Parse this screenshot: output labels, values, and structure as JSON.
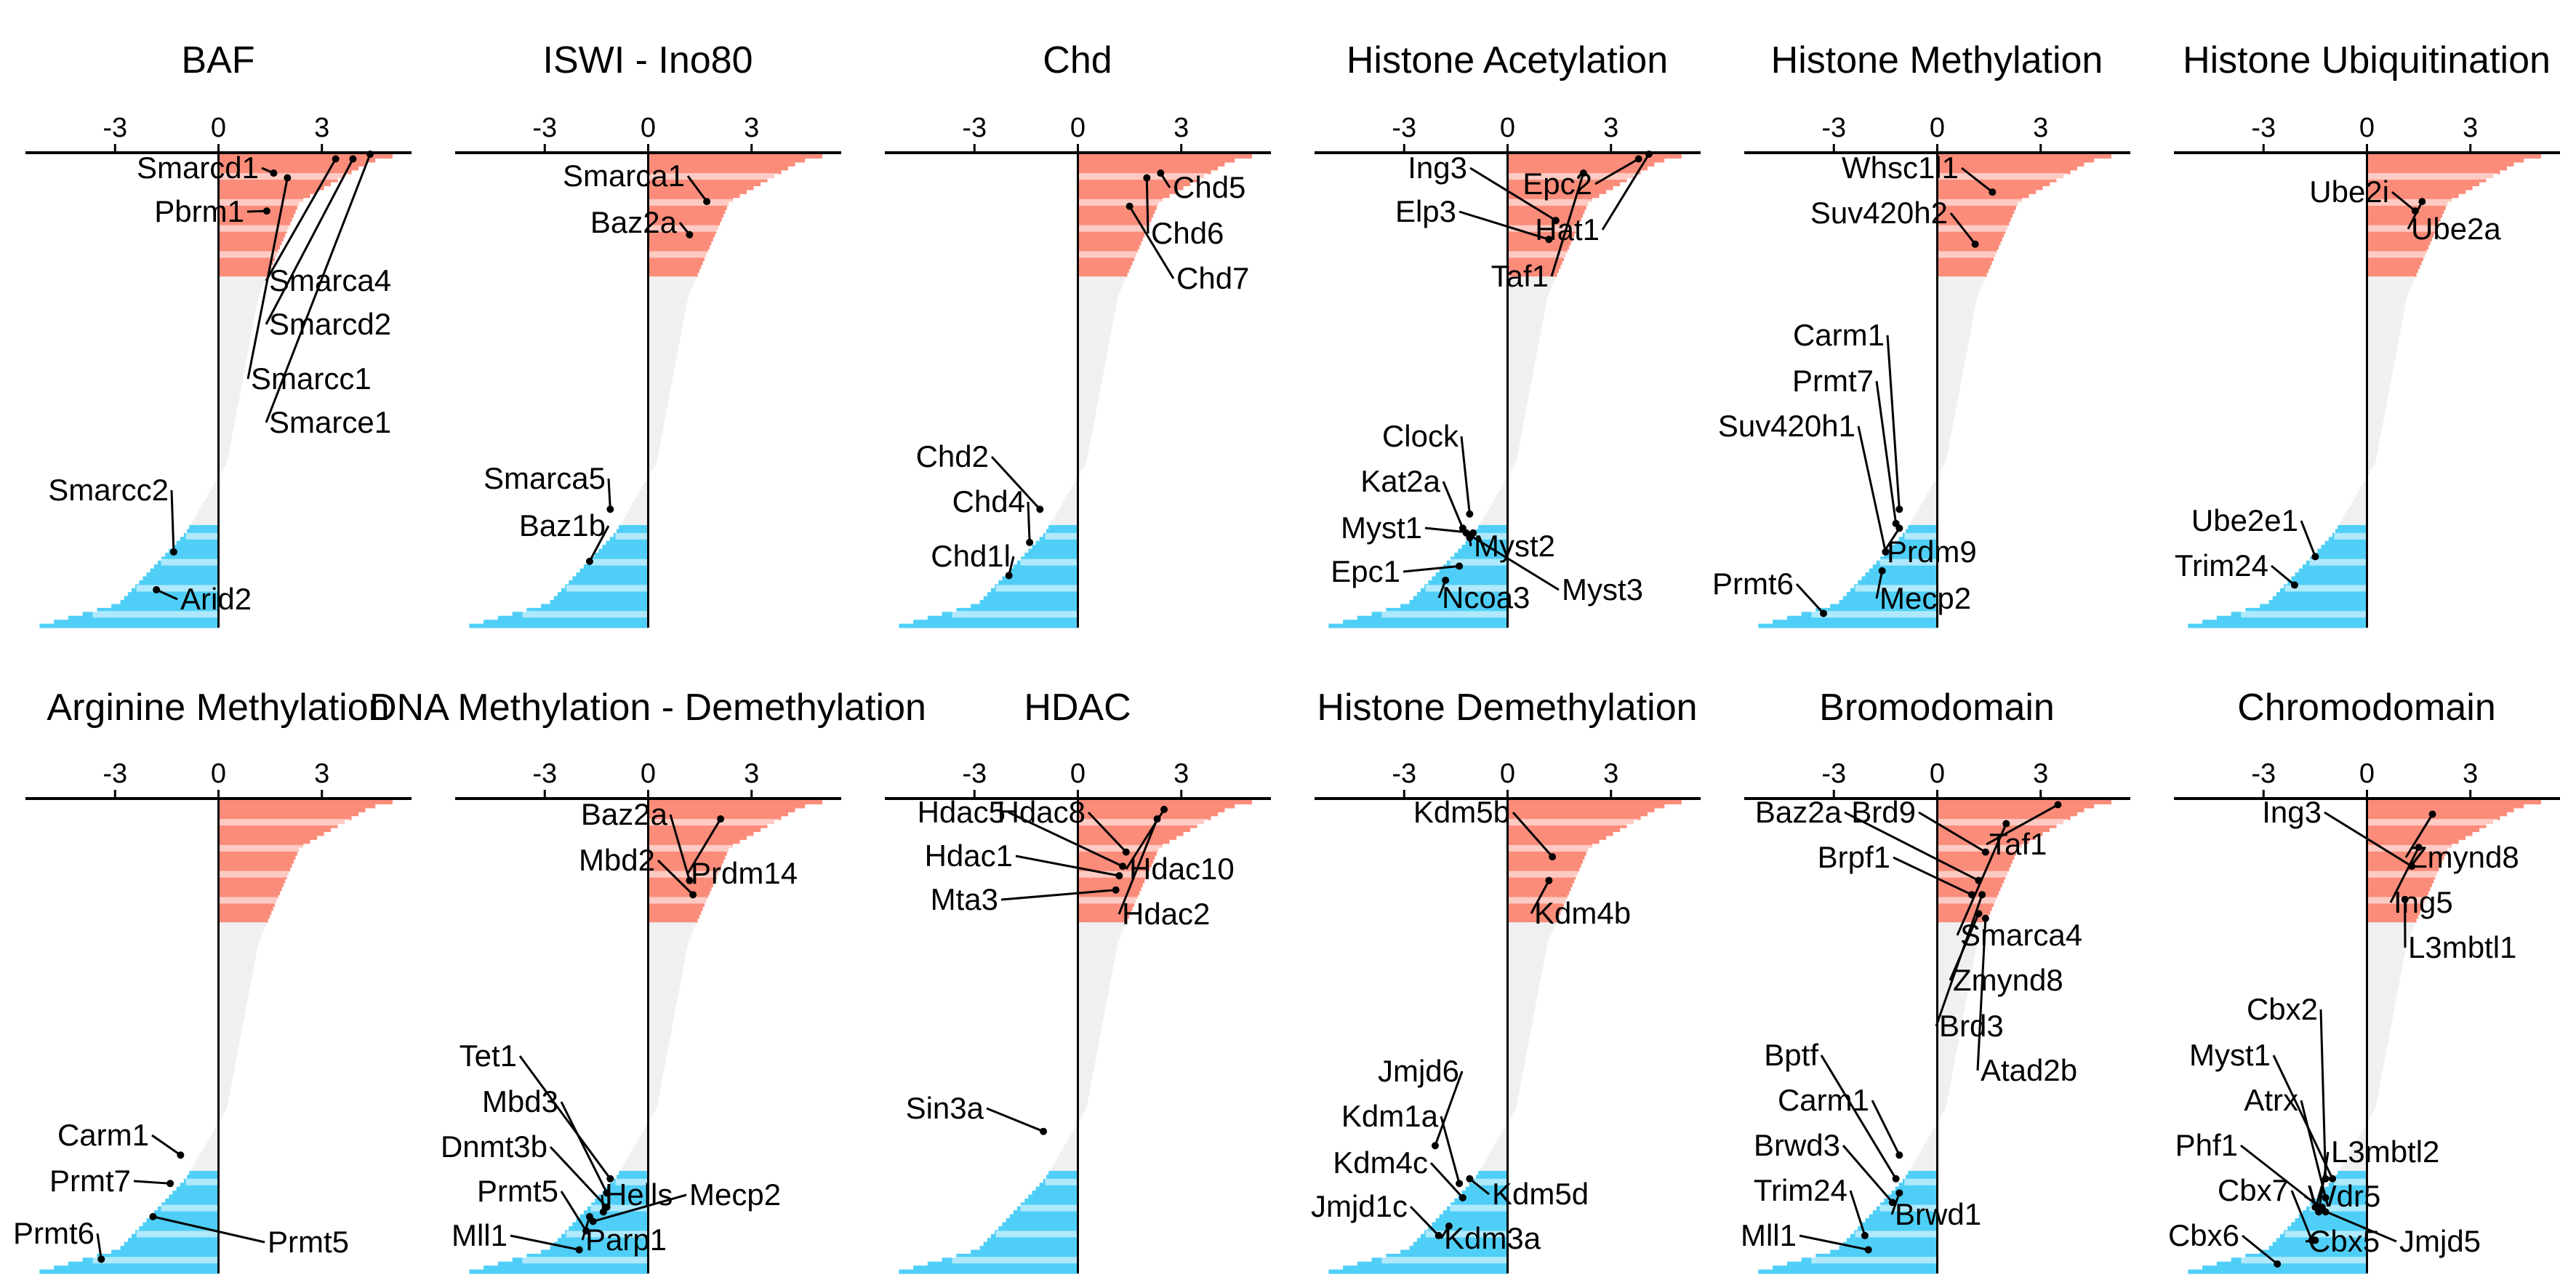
{
  "colors": {
    "positive": "#fb8c7a",
    "negative": "#4fcff7",
    "neutral": "#f0f0f0",
    "stripe": "#ffffff",
    "axis": "#000000"
  },
  "chart_data": [
    {
      "type": "bar",
      "title": "BAF",
      "xlabel": "",
      "ylabel": "",
      "xlim": [
        -5.6,
        5.6
      ],
      "xticks": [
        -3,
        0,
        3
      ],
      "xtick_labels": [
        "-3",
        "0",
        "3"
      ],
      "grid": false,
      "orientation": "horizontal, genes ranked by score from top to bottom",
      "labels": [
        {
          "gene": "Smarcd1",
          "score": 1.6,
          "rank": 0.04
        },
        {
          "gene": "Pbrm1",
          "score": 1.4,
          "rank": 0.12
        },
        {
          "gene": "Smarca4",
          "score": 3.4,
          "rank": 0.01
        },
        {
          "gene": "Smarcd2",
          "score": 3.9,
          "rank": 0.01
        },
        {
          "gene": "Smarcc1",
          "score": 2.0,
          "rank": 0.05
        },
        {
          "gene": "Smarce1",
          "score": 4.4,
          "rank": 0.0
        },
        {
          "gene": "Smarcc2",
          "score": -1.3,
          "rank": 0.84
        },
        {
          "gene": "Arid2",
          "score": -1.8,
          "rank": 0.92
        }
      ]
    },
    {
      "type": "bar",
      "title": "ISWI - Ino80",
      "xlim": [
        -5.6,
        5.6
      ],
      "xticks": [
        -3,
        0,
        3
      ],
      "xtick_labels": [
        "-3",
        "0",
        "3"
      ],
      "labels": [
        {
          "gene": "Smarca1",
          "score": 1.7,
          "rank": 0.1
        },
        {
          "gene": "Baz2a",
          "score": 1.2,
          "rank": 0.17
        },
        {
          "gene": "Smarca5",
          "score": -1.1,
          "rank": 0.75
        },
        {
          "gene": "Baz1b",
          "score": -1.7,
          "rank": 0.86
        }
      ]
    },
    {
      "type": "bar",
      "title": "Chd",
      "xlim": [
        -5.6,
        5.6
      ],
      "xticks": [
        -3,
        0,
        3
      ],
      "xtick_labels": [
        "-3",
        "0",
        "3"
      ],
      "labels": [
        {
          "gene": "Chd5",
          "score": 2.4,
          "rank": 0.04
        },
        {
          "gene": "Chd6",
          "score": 2.0,
          "rank": 0.05
        },
        {
          "gene": "Chd7",
          "score": 1.5,
          "rank": 0.11
        },
        {
          "gene": "Chd2",
          "score": -1.1,
          "rank": 0.75
        },
        {
          "gene": "Chd4",
          "score": -1.4,
          "rank": 0.82
        },
        {
          "gene": "Chd1l",
          "score": -2.0,
          "rank": 0.89
        }
      ]
    },
    {
      "type": "bar",
      "title": "Histone Acetylation",
      "xlim": [
        -5.6,
        5.6
      ],
      "xticks": [
        -3,
        0,
        3
      ],
      "xtick_labels": [
        "-3",
        "0",
        "3"
      ],
      "labels": [
        {
          "gene": "Ing3",
          "score": 1.4,
          "rank": 0.14
        },
        {
          "gene": "Elp3",
          "score": 1.2,
          "rank": 0.18
        },
        {
          "gene": "Taf1",
          "score": 2.2,
          "rank": 0.04
        },
        {
          "gene": "Epc2",
          "score": 3.8,
          "rank": 0.01
        },
        {
          "gene": "Hat1",
          "score": 4.1,
          "rank": 0.0
        },
        {
          "gene": "Clock",
          "score": -1.1,
          "rank": 0.76
        },
        {
          "gene": "Kat2a",
          "score": -1.3,
          "rank": 0.79
        },
        {
          "gene": "Myst1",
          "score": -1.0,
          "rank": 0.8
        },
        {
          "gene": "Myst2",
          "score": -1.1,
          "rank": 0.81
        },
        {
          "gene": "Myst3",
          "score": -1.2,
          "rank": 0.8
        },
        {
          "gene": "Epc1",
          "score": -1.4,
          "rank": 0.87
        },
        {
          "gene": "Ncoa3",
          "score": -1.8,
          "rank": 0.9
        }
      ]
    },
    {
      "type": "bar",
      "title": "Histone Methylation",
      "xlim": [
        -5.6,
        5.6
      ],
      "xticks": [
        -3,
        0,
        3
      ],
      "xtick_labels": [
        "-3",
        "0",
        "3"
      ],
      "labels": [
        {
          "gene": "Whsc1l1",
          "score": 1.6,
          "rank": 0.08
        },
        {
          "gene": "Suv420h2",
          "score": 1.1,
          "rank": 0.19
        },
        {
          "gene": "Carm1",
          "score": -1.1,
          "rank": 0.75
        },
        {
          "gene": "Prmt7",
          "score": -1.2,
          "rank": 0.78
        },
        {
          "gene": "Suv420h1",
          "score": -1.5,
          "rank": 0.84
        },
        {
          "gene": "Prdm9",
          "score": -1.1,
          "rank": 0.79
        },
        {
          "gene": "Prmt6",
          "score": -3.3,
          "rank": 0.97
        },
        {
          "gene": "Mecp2",
          "score": -1.6,
          "rank": 0.88
        }
      ]
    },
    {
      "type": "bar",
      "title": "Histone Ubiquitination",
      "xlim": [
        -5.6,
        5.6
      ],
      "xticks": [
        -3,
        0,
        3
      ],
      "xtick_labels": [
        "-3",
        "0",
        "3"
      ],
      "labels": [
        {
          "gene": "Ube2i",
          "score": 1.4,
          "rank": 0.12
        },
        {
          "gene": "Ube2a",
          "score": 1.6,
          "rank": 0.1
        },
        {
          "gene": "Ube2e1",
          "score": -1.5,
          "rank": 0.85
        },
        {
          "gene": "Trim24",
          "score": -2.1,
          "rank": 0.91
        }
      ]
    },
    {
      "type": "bar",
      "title": "Arginine Methylation",
      "xlim": [
        -5.6,
        5.6
      ],
      "xticks": [
        -3,
        0,
        3
      ],
      "xtick_labels": [
        "-3",
        "0",
        "3"
      ],
      "labels": [
        {
          "gene": "Carm1",
          "score": -1.1,
          "rank": 0.75
        },
        {
          "gene": "Prmt7",
          "score": -1.4,
          "rank": 0.81
        },
        {
          "gene": "Prmt6",
          "score": -3.4,
          "rank": 0.97
        },
        {
          "gene": "Prmt5",
          "score": -1.9,
          "rank": 0.88
        }
      ]
    },
    {
      "type": "bar",
      "title": "DNA Methylation - Demethylation",
      "xlim": [
        -5.6,
        5.6
      ],
      "xticks": [
        -3,
        0,
        3
      ],
      "xtick_labels": [
        "-3",
        "0",
        "3"
      ],
      "labels": [
        {
          "gene": "Baz2a",
          "score": 1.2,
          "rank": 0.17
        },
        {
          "gene": "Mbd2",
          "score": 1.3,
          "rank": 0.2
        },
        {
          "gene": "Prdm14",
          "score": 2.1,
          "rank": 0.04
        },
        {
          "gene": "Tet1",
          "score": -1.1,
          "rank": 0.8
        },
        {
          "gene": "Mbd3",
          "score": -1.2,
          "rank": 0.83
        },
        {
          "gene": "Dnmt3b",
          "score": -1.2,
          "rank": 0.86
        },
        {
          "gene": "Hells",
          "score": -1.3,
          "rank": 0.87
        },
        {
          "gene": "Mecp2",
          "score": -1.6,
          "rank": 0.89
        },
        {
          "gene": "Prmt5",
          "score": -1.8,
          "rank": 0.91
        },
        {
          "gene": "Parp1",
          "score": -1.7,
          "rank": 0.88
        },
        {
          "gene": "Mll1",
          "score": -2.0,
          "rank": 0.95
        }
      ]
    },
    {
      "type": "bar",
      "title": "HDAC",
      "xlim": [
        -5.6,
        5.6
      ],
      "xticks": [
        -3,
        0,
        3
      ],
      "xtick_labels": [
        "-3",
        "0",
        "3"
      ],
      "labels": [
        {
          "gene": "Hdac5",
          "score": 1.3,
          "rank": 0.14
        },
        {
          "gene": "Hdac8",
          "score": 1.4,
          "rank": 0.11
        },
        {
          "gene": "Hdac1",
          "score": 1.2,
          "rank": 0.16
        },
        {
          "gene": "Hdac10",
          "score": 2.5,
          "rank": 0.02
        },
        {
          "gene": "Mta3",
          "score": 1.1,
          "rank": 0.19
        },
        {
          "gene": "Hdac2",
          "score": 2.3,
          "rank": 0.04
        },
        {
          "gene": "Sin3a",
          "score": -1.0,
          "rank": 0.7
        }
      ]
    },
    {
      "type": "bar",
      "title": "Histone Demethylation",
      "xlim": [
        -5.6,
        5.6
      ],
      "xticks": [
        -3,
        0,
        3
      ],
      "xtick_labels": [
        "-3",
        "0",
        "3"
      ],
      "labels": [
        {
          "gene": "Kdm5b",
          "score": 1.3,
          "rank": 0.12
        },
        {
          "gene": "Kdm4b",
          "score": 1.2,
          "rank": 0.17
        },
        {
          "gene": "Jmjd6",
          "score": -2.1,
          "rank": 0.73
        },
        {
          "gene": "Kdm1a",
          "score": -1.4,
          "rank": 0.81
        },
        {
          "gene": "Kdm4c",
          "score": -1.3,
          "rank": 0.84
        },
        {
          "gene": "Kdm5d",
          "score": -1.1,
          "rank": 0.8
        },
        {
          "gene": "Jmjd1c",
          "score": -2.0,
          "rank": 0.92
        },
        {
          "gene": "Kdm3a",
          "score": -1.7,
          "rank": 0.9
        }
      ]
    },
    {
      "type": "bar",
      "title": "Bromodomain",
      "xlim": [
        -5.6,
        5.6
      ],
      "xticks": [
        -3,
        0,
        3
      ],
      "xtick_labels": [
        "-3",
        "0",
        "3"
      ],
      "labels": [
        {
          "gene": "Baz2a",
          "score": 1.2,
          "rank": 0.17
        },
        {
          "gene": "Brd9",
          "score": 1.4,
          "rank": 0.11
        },
        {
          "gene": "Brpf1",
          "score": 1.0,
          "rank": 0.2
        },
        {
          "gene": "Taf1",
          "score": 3.5,
          "rank": 0.01
        },
        {
          "gene": "Smarca4",
          "score": 2.0,
          "rank": 0.05
        },
        {
          "gene": "Zmynd8",
          "score": 1.2,
          "rank": 0.24
        },
        {
          "gene": "Brd3",
          "score": 1.3,
          "rank": 0.2
        },
        {
          "gene": "Atad2b",
          "score": 1.4,
          "rank": 0.25
        },
        {
          "gene": "Bptf",
          "score": -1.2,
          "rank": 0.8
        },
        {
          "gene": "Carm1",
          "score": -1.1,
          "rank": 0.75
        },
        {
          "gene": "Brwd3",
          "score": -1.3,
          "rank": 0.85
        },
        {
          "gene": "Brwd1",
          "score": -1.1,
          "rank": 0.83
        },
        {
          "gene": "Trim24",
          "score": -2.1,
          "rank": 0.92
        },
        {
          "gene": "Mll1",
          "score": -2.0,
          "rank": 0.95
        }
      ]
    },
    {
      "type": "bar",
      "title": "Chromodomain",
      "xlim": [
        -5.6,
        5.6
      ],
      "xticks": [
        -3,
        0,
        3
      ],
      "xtick_labels": [
        "-3",
        "0",
        "3"
      ],
      "labels": [
        {
          "gene": "Ing3",
          "score": 1.3,
          "rank": 0.14
        },
        {
          "gene": "Zmynd8",
          "score": 1.9,
          "rank": 0.03
        },
        {
          "gene": "Ing5",
          "score": 1.5,
          "rank": 0.1
        },
        {
          "gene": "L3mbtl1",
          "score": 1.1,
          "rank": 0.21
        },
        {
          "gene": "Cbx2",
          "score": -1.2,
          "rank": 0.8
        },
        {
          "gene": "Myst1",
          "score": -1.0,
          "rank": 0.8
        },
        {
          "gene": "Atrx",
          "score": -1.2,
          "rank": 0.84
        },
        {
          "gene": "L3mbtl2",
          "score": -1.4,
          "rank": 0.87
        },
        {
          "gene": "Wdr5",
          "score": -1.3,
          "rank": 0.86
        },
        {
          "gene": "Phf1",
          "score": -1.2,
          "rank": 0.87
        },
        {
          "gene": "Jmjd5",
          "score": -1.5,
          "rank": 0.86
        },
        {
          "gene": "Cbx7",
          "score": -1.6,
          "rank": 0.93
        },
        {
          "gene": "Cbx6",
          "score": -2.6,
          "rank": 0.98
        },
        {
          "gene": "Cbx5",
          "score": -1.5,
          "rank": 0.93
        }
      ]
    }
  ]
}
